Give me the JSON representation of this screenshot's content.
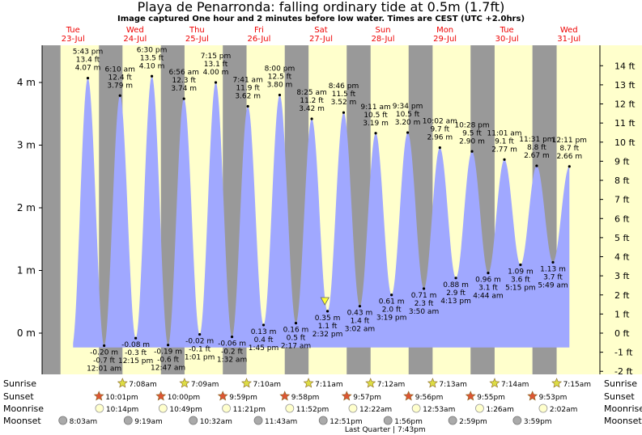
{
  "title": "Playa de Penarronda: falling  ordinary tide at 0.5m (1.7ft)",
  "subtitle": "Image captured One hour and 2 minutes before low water. Times are CEST (UTC +2.0hrs)",
  "days": [
    {
      "name": "Tue",
      "date": "23-Jul"
    },
    {
      "name": "Wed",
      "date": "24-Jul"
    },
    {
      "name": "Thu",
      "date": "25-Jul"
    },
    {
      "name": "Fri",
      "date": "26-Jul"
    },
    {
      "name": "Sat",
      "date": "27-Jul"
    },
    {
      "name": "Sun",
      "date": "28-Jul"
    },
    {
      "name": "Mon",
      "date": "29-Jul"
    },
    {
      "name": "Tue",
      "date": "30-Jul"
    },
    {
      "name": "Wed",
      "date": "31-Jul"
    }
  ],
  "chart_data": {
    "type": "area",
    "ylabel_left_unit": "m",
    "ylabel_right_unit": "ft",
    "y_ticks_m": [
      "0 m",
      "1 m",
      "2 m",
      "3 m",
      "4 m"
    ],
    "y_ticks_ft": [
      "-2 ft",
      "-1 ft",
      "0 ft",
      "1 ft",
      "2 ft",
      "3 ft",
      "4 ft",
      "5 ft",
      "6 ft",
      "7 ft",
      "8 ft",
      "9 ft",
      "10 ft",
      "11 ft",
      "12 ft",
      "13 ft",
      "14 ft"
    ],
    "ylim_m": [
      -0.62,
      4.55
    ],
    "x_range_hours": [
      0,
      216
    ],
    "tides": [
      {
        "type": "high",
        "t": 17.72,
        "m": 4.07,
        "time": "5:43 pm",
        "ft": "13.4 ft",
        "m_label": "4.07 m"
      },
      {
        "type": "low",
        "t": 24.02,
        "m": -0.2,
        "time": "12:01 am",
        "ft": "-0.7 ft",
        "m_label": "-0.20 m"
      },
      {
        "type": "high",
        "t": 30.17,
        "m": 3.79,
        "time": "6:10 am",
        "ft": "12.4 ft",
        "m_label": "3.79 m"
      },
      {
        "type": "low",
        "t": 36.25,
        "m": -0.08,
        "time": "12:15 pm",
        "ft": "-0.3 ft",
        "m_label": "-0.08 m"
      },
      {
        "type": "high",
        "t": 42.5,
        "m": 4.1,
        "time": "6:30 pm",
        "ft": "13.5 ft",
        "m_label": "4.10 m"
      },
      {
        "type": "low",
        "t": 48.78,
        "m": -0.19,
        "time": "12:47 am",
        "ft": "-0.6 ft",
        "m_label": "-0.19 m"
      },
      {
        "type": "high",
        "t": 54.93,
        "m": 3.74,
        "time": "6:56 am",
        "ft": "12.3 ft",
        "m_label": "3.74 m"
      },
      {
        "type": "low",
        "t": 61.02,
        "m": -0.02,
        "time": "1:01 pm",
        "ft": "-0.1 ft",
        "m_label": "-0.02 m"
      },
      {
        "type": "high",
        "t": 67.25,
        "m": 4.0,
        "time": "7:15 pm",
        "ft": "13.1 ft",
        "m_label": "4.00 m"
      },
      {
        "type": "low",
        "t": 73.53,
        "m": -0.06,
        "time": "1:32 am",
        "ft": "-0.2 ft",
        "m_label": "-0.06 m"
      },
      {
        "type": "high",
        "t": 79.68,
        "m": 3.62,
        "time": "7:41 am",
        "ft": "11.9 ft",
        "m_label": "3.62 m"
      },
      {
        "type": "low",
        "t": 85.75,
        "m": 0.13,
        "time": "1:45 pm",
        "ft": "0.4 ft",
        "m_label": "0.13 m"
      },
      {
        "type": "high",
        "t": 92.0,
        "m": 3.8,
        "time": "8:00 pm",
        "ft": "12.5 ft",
        "m_label": "3.80 m"
      },
      {
        "type": "low",
        "t": 98.28,
        "m": 0.16,
        "time": "2:17 am",
        "ft": "0.5 ft",
        "m_label": "0.16 m"
      },
      {
        "type": "high",
        "t": 104.42,
        "m": 3.42,
        "time": "8:25 am",
        "ft": "11.2 ft",
        "m_label": "3.42 m"
      },
      {
        "type": "low",
        "t": 110.53,
        "m": 0.35,
        "time": "2:32 pm",
        "ft": "1.1 ft",
        "m_label": "0.35 m"
      },
      {
        "type": "high",
        "t": 116.77,
        "m": 3.52,
        "time": "8:46 pm",
        "ft": "11.5 ft",
        "m_label": "3.52 m"
      },
      {
        "type": "low",
        "t": 123.03,
        "m": 0.43,
        "time": "3:02 am",
        "ft": "1.4 ft",
        "m_label": "0.43 m"
      },
      {
        "type": "high",
        "t": 129.18,
        "m": 3.19,
        "time": "9:11 am",
        "ft": "10.5 ft",
        "m_label": "3.19 m"
      },
      {
        "type": "low",
        "t": 135.32,
        "m": 0.61,
        "time": "3:19 pm",
        "ft": "2.0 ft",
        "m_label": "0.61 m"
      },
      {
        "type": "high",
        "t": 141.57,
        "m": 3.2,
        "time": "9:34 pm",
        "ft": "10.5 ft",
        "m_label": "3.20 m"
      },
      {
        "type": "low",
        "t": 147.83,
        "m": 0.71,
        "time": "3:50 am",
        "ft": "2.3 ft",
        "m_label": "0.71 m"
      },
      {
        "type": "high",
        "t": 154.03,
        "m": 2.96,
        "time": "10:02 am",
        "ft": "9.7 ft",
        "m_label": "2.96 m"
      },
      {
        "type": "low",
        "t": 160.22,
        "m": 0.88,
        "time": "4:13 pm",
        "ft": "2.9 ft",
        "m_label": "0.88 m"
      },
      {
        "type": "high",
        "t": 166.47,
        "m": 2.9,
        "time": "10:28 pm",
        "ft": "9.5 ft",
        "m_label": "2.90 m"
      },
      {
        "type": "low",
        "t": 172.73,
        "m": 0.96,
        "time": "4:44 am",
        "ft": "3.1 ft",
        "m_label": "0.96 m"
      },
      {
        "type": "high",
        "t": 179.02,
        "m": 2.77,
        "time": "11:01 am",
        "ft": "9.1 ft",
        "m_label": "2.77 m"
      },
      {
        "type": "low",
        "t": 185.25,
        "m": 1.09,
        "time": "5:15 pm",
        "ft": "3.6 ft",
        "m_label": "1.09 m"
      },
      {
        "type": "high",
        "t": 191.52,
        "m": 2.67,
        "time": "11:31 pm",
        "ft": "8.8 ft",
        "m_label": "2.67 m"
      },
      {
        "type": "low",
        "t": 197.82,
        "m": 1.13,
        "time": "5:49 am",
        "ft": "3.7 ft",
        "m_label": "1.13 m"
      },
      {
        "type": "high",
        "t": 204.18,
        "m": 2.66,
        "time": "12:11 pm",
        "ft": "8.7 ft",
        "m_label": "2.66 m"
      }
    ],
    "now_marker_hours": 109.5,
    "curve_end_hours": 204.18,
    "curve_start_hours": 12.0,
    "night_bands": [
      {
        "start": 0,
        "end": 7.13
      },
      {
        "start": 22.02,
        "end": 31.13
      },
      {
        "start": 46.0,
        "end": 55.15
      },
      {
        "start": 69.98,
        "end": 79.17
      },
      {
        "start": 93.97,
        "end": 103.18
      },
      {
        "start": 117.95,
        "end": 127.2
      },
      {
        "start": 141.93,
        "end": 151.22
      },
      {
        "start": 165.92,
        "end": 175.23
      },
      {
        "start": 189.88,
        "end": 199.25
      }
    ],
    "astro_labels": [
      "Sunrise",
      "Sunset",
      "Moonrise",
      "Moonset"
    ],
    "sunrise": [
      {
        "t": 31.13,
        "time": "7:08am"
      },
      {
        "t": 55.15,
        "time": "7:09am"
      },
      {
        "t": 79.17,
        "time": "7:10am"
      },
      {
        "t": 103.18,
        "time": "7:11am"
      },
      {
        "t": 127.2,
        "time": "7:12am"
      },
      {
        "t": 151.22,
        "time": "7:13am"
      },
      {
        "t": 175.23,
        "time": "7:14am"
      },
      {
        "t": 199.25,
        "time": "7:15am"
      }
    ],
    "sunset": [
      {
        "t": 22.02,
        "time": "10:01pm"
      },
      {
        "t": 46.0,
        "time": "10:00pm"
      },
      {
        "t": 69.98,
        "time": "9:59pm"
      },
      {
        "t": 93.97,
        "time": "9:58pm"
      },
      {
        "t": 117.95,
        "time": "9:57pm"
      },
      {
        "t": 141.93,
        "time": "9:56pm"
      },
      {
        "t": 165.92,
        "time": "9:55pm"
      },
      {
        "t": 189.88,
        "time": "9:53pm"
      }
    ],
    "moonrise": [
      {
        "t": 22.23,
        "time": "10:14pm"
      },
      {
        "t": 46.82,
        "time": "10:49pm"
      },
      {
        "t": 71.35,
        "time": "11:21pm"
      },
      {
        "t": 95.87,
        "time": "11:52pm"
      },
      {
        "t": 120.37,
        "time": "12:22am"
      },
      {
        "t": 144.88,
        "time": "12:53am"
      },
      {
        "t": 169.43,
        "time": "1:26am"
      },
      {
        "t": 194.03,
        "time": "2:02am"
      }
    ],
    "moonset": [
      {
        "t": 8.05,
        "time": "8:03am"
      },
      {
        "t": 33.32,
        "time": "9:19am"
      },
      {
        "t": 58.53,
        "time": "10:32am"
      },
      {
        "t": 83.72,
        "time": "11:43am"
      },
      {
        "t": 108.85,
        "time": "12:51pm"
      },
      {
        "t": 133.93,
        "time": "1:56pm"
      },
      {
        "t": 158.98,
        "time": "2:59pm"
      },
      {
        "t": 183.98,
        "time": "3:59pm"
      }
    ],
    "moon_phase_note": "Last Quarter | 7:43pm",
    "colors": {
      "day_bg": "#ffffcc",
      "night_bg": "#999999",
      "water": "#a0a8ff",
      "day_label": "#ee0000",
      "sunrise_star": "#dddd44",
      "sunset_star": "#dd5533",
      "moonrise": "#ffffcc",
      "moonset": "#aaaaaa",
      "now_marker": "#ffff33"
    }
  }
}
